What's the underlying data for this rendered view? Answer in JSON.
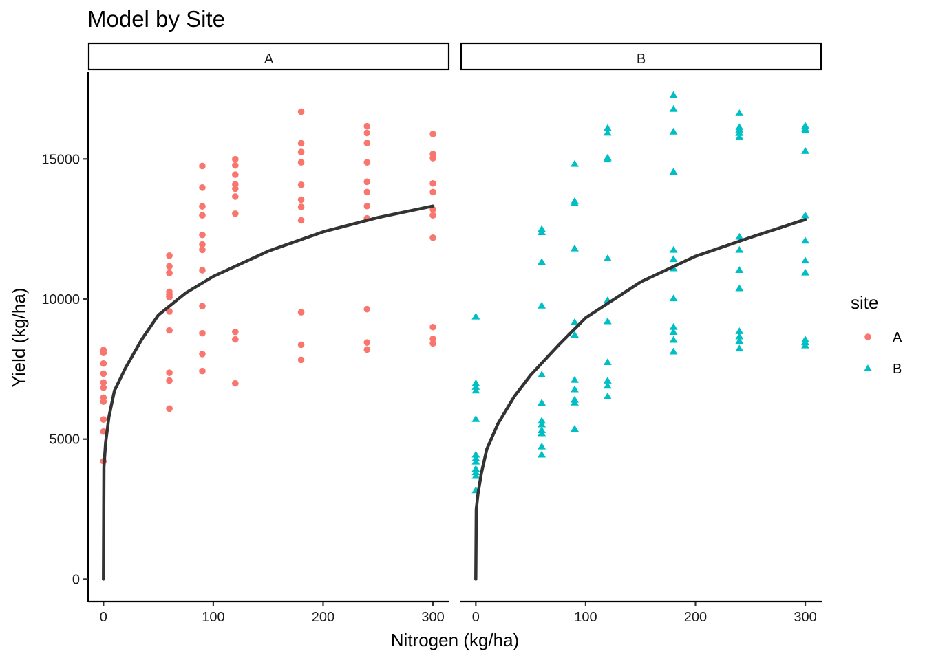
{
  "chart_data": {
    "type": "scatter",
    "title": "Model by Site",
    "xlabel": "Nitrogen (kg/ha)",
    "ylabel": "Yield (kg/ha)",
    "xlim": [
      -14,
      315
    ],
    "ylim": [
      -800,
      18100
    ],
    "xticks": [
      0,
      100,
      200,
      300
    ],
    "yticks": [
      0,
      5000,
      10000,
      15000
    ],
    "legend": {
      "title": "site",
      "position": "right",
      "entries": [
        {
          "label": "A",
          "shape": "circle",
          "color": "#F8766D"
        },
        {
          "label": "B",
          "shape": "triangle",
          "color": "#00BFC4"
        }
      ]
    },
    "curve_color": "#333333",
    "facets": [
      {
        "label": "A",
        "series": "A",
        "points": [
          [
            0,
            8180
          ],
          [
            0,
            8080
          ],
          [
            0,
            7700
          ],
          [
            0,
            7340
          ],
          [
            0,
            7020
          ],
          [
            0,
            6840
          ],
          [
            0,
            6480
          ],
          [
            0,
            6340
          ],
          [
            0,
            5700
          ],
          [
            0,
            5270
          ],
          [
            0,
            4210
          ],
          [
            60,
            11550
          ],
          [
            60,
            11170
          ],
          [
            60,
            10930
          ],
          [
            60,
            10260
          ],
          [
            60,
            10170
          ],
          [
            60,
            10070
          ],
          [
            60,
            9560
          ],
          [
            60,
            8880
          ],
          [
            60,
            7370
          ],
          [
            60,
            7090
          ],
          [
            60,
            6090
          ],
          [
            90,
            14750
          ],
          [
            90,
            13980
          ],
          [
            90,
            13310
          ],
          [
            90,
            12990
          ],
          [
            90,
            12290
          ],
          [
            90,
            11950
          ],
          [
            90,
            11760
          ],
          [
            90,
            11030
          ],
          [
            90,
            9750
          ],
          [
            90,
            8780
          ],
          [
            90,
            8040
          ],
          [
            90,
            7430
          ],
          [
            120,
            14990
          ],
          [
            120,
            14770
          ],
          [
            120,
            14440
          ],
          [
            120,
            14100
          ],
          [
            120,
            13940
          ],
          [
            120,
            13660
          ],
          [
            120,
            13050
          ],
          [
            120,
            8830
          ],
          [
            120,
            8560
          ],
          [
            120,
            6990
          ],
          [
            180,
            16690
          ],
          [
            180,
            15560
          ],
          [
            180,
            15250
          ],
          [
            180,
            14880
          ],
          [
            180,
            14080
          ],
          [
            180,
            13550
          ],
          [
            180,
            13290
          ],
          [
            180,
            12810
          ],
          [
            180,
            9530
          ],
          [
            180,
            8370
          ],
          [
            180,
            7830
          ],
          [
            240,
            16170
          ],
          [
            240,
            15930
          ],
          [
            240,
            15570
          ],
          [
            240,
            14880
          ],
          [
            240,
            14190
          ],
          [
            240,
            13820
          ],
          [
            240,
            13320
          ],
          [
            240,
            12880
          ],
          [
            240,
            9640
          ],
          [
            240,
            8450
          ],
          [
            240,
            8200
          ],
          [
            300,
            15890
          ],
          [
            300,
            15180
          ],
          [
            300,
            15030
          ],
          [
            300,
            14130
          ],
          [
            300,
            13820
          ],
          [
            300,
            13200
          ],
          [
            300,
            12990
          ],
          [
            300,
            12190
          ],
          [
            300,
            9000
          ],
          [
            300,
            8580
          ],
          [
            300,
            8420
          ]
        ],
        "curve": [
          [
            0,
            0
          ],
          [
            0.4,
            4010
          ],
          [
            2,
            4880
          ],
          [
            5,
            5800
          ],
          [
            10,
            6730
          ],
          [
            20,
            7540
          ],
          [
            35,
            8570
          ],
          [
            50,
            9430
          ],
          [
            75,
            10220
          ],
          [
            100,
            10810
          ],
          [
            150,
            11710
          ],
          [
            200,
            12400
          ],
          [
            250,
            12910
          ],
          [
            300,
            13320
          ]
        ]
      },
      {
        "label": "B",
        "series": "B",
        "points": [
          [
            0,
            9370
          ],
          [
            0,
            6990
          ],
          [
            0,
            6860
          ],
          [
            0,
            6730
          ],
          [
            0,
            5710
          ],
          [
            0,
            4440
          ],
          [
            0,
            4310
          ],
          [
            0,
            4190
          ],
          [
            0,
            3930
          ],
          [
            0,
            3810
          ],
          [
            0,
            3680
          ],
          [
            0,
            3170
          ],
          [
            60,
            12490
          ],
          [
            60,
            12380
          ],
          [
            60,
            11320
          ],
          [
            60,
            9760
          ],
          [
            60,
            7300
          ],
          [
            60,
            6290
          ],
          [
            60,
            5650
          ],
          [
            60,
            5520
          ],
          [
            60,
            5310
          ],
          [
            60,
            5200
          ],
          [
            60,
            4730
          ],
          [
            60,
            4440
          ],
          [
            90,
            14820
          ],
          [
            90,
            13490
          ],
          [
            90,
            13420
          ],
          [
            90,
            11800
          ],
          [
            90,
            9170
          ],
          [
            90,
            8720
          ],
          [
            90,
            7110
          ],
          [
            90,
            6770
          ],
          [
            90,
            6400
          ],
          [
            90,
            6300
          ],
          [
            90,
            5360
          ],
          [
            120,
            16100
          ],
          [
            120,
            15930
          ],
          [
            120,
            15040
          ],
          [
            120,
            14980
          ],
          [
            120,
            11450
          ],
          [
            120,
            9950
          ],
          [
            120,
            9200
          ],
          [
            120,
            7740
          ],
          [
            120,
            7080
          ],
          [
            120,
            6900
          ],
          [
            120,
            6520
          ],
          [
            180,
            17280
          ],
          [
            180,
            16780
          ],
          [
            180,
            15970
          ],
          [
            180,
            14540
          ],
          [
            180,
            11750
          ],
          [
            180,
            11420
          ],
          [
            180,
            11090
          ],
          [
            180,
            10020
          ],
          [
            180,
            9000
          ],
          [
            180,
            8820
          ],
          [
            180,
            8540
          ],
          [
            180,
            8120
          ],
          [
            240,
            16630
          ],
          [
            240,
            16130
          ],
          [
            240,
            16040
          ],
          [
            240,
            15920
          ],
          [
            240,
            15780
          ],
          [
            240,
            12220
          ],
          [
            240,
            11750
          ],
          [
            240,
            11030
          ],
          [
            240,
            10380
          ],
          [
            240,
            8850
          ],
          [
            240,
            8660
          ],
          [
            240,
            8500
          ],
          [
            240,
            8230
          ],
          [
            300,
            16180
          ],
          [
            300,
            16070
          ],
          [
            300,
            16010
          ],
          [
            300,
            15280
          ],
          [
            300,
            12980
          ],
          [
            300,
            12080
          ],
          [
            300,
            11370
          ],
          [
            300,
            10940
          ],
          [
            300,
            8550
          ],
          [
            300,
            8450
          ],
          [
            300,
            8340
          ]
        ],
        "curve": [
          [
            0,
            0
          ],
          [
            0.4,
            2500
          ],
          [
            2,
            3050
          ],
          [
            5,
            3770
          ],
          [
            10,
            4640
          ],
          [
            20,
            5540
          ],
          [
            35,
            6520
          ],
          [
            50,
            7290
          ],
          [
            75,
            8340
          ],
          [
            100,
            9330
          ],
          [
            150,
            10610
          ],
          [
            200,
            11530
          ],
          [
            250,
            12200
          ],
          [
            300,
            12840
          ]
        ]
      }
    ]
  }
}
